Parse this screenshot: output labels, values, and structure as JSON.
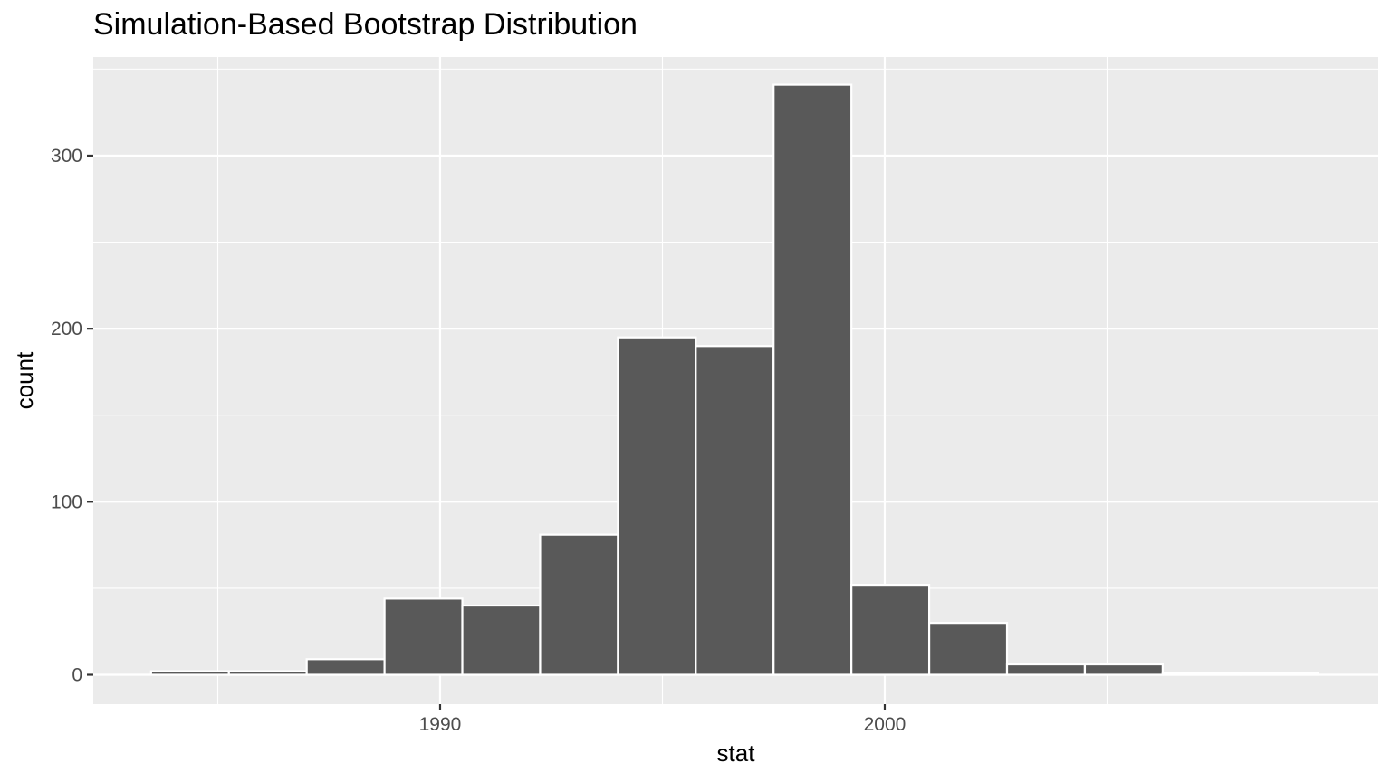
{
  "chart_data": {
    "type": "bar",
    "title": "Simulation-Based Bootstrap Distribution",
    "xlabel": "stat",
    "ylabel": "count",
    "x_ticks": [
      1990,
      2000
    ],
    "y_ticks": [
      0,
      100,
      200,
      300
    ],
    "xlim": [
      1982.2,
      2011.1
    ],
    "ylim": [
      -17,
      357
    ],
    "bin_width": 1.75,
    "bins": [
      {
        "start": 1983.5,
        "count": 2
      },
      {
        "start": 1985.25,
        "count": 2
      },
      {
        "start": 1987.0,
        "count": 9
      },
      {
        "start": 1988.75,
        "count": 44
      },
      {
        "start": 1990.5,
        "count": 40
      },
      {
        "start": 1992.25,
        "count": 81
      },
      {
        "start": 1994.0,
        "count": 195
      },
      {
        "start": 1995.75,
        "count": 190
      },
      {
        "start": 1997.5,
        "count": 341
      },
      {
        "start": 1999.25,
        "count": 52
      },
      {
        "start": 2001.0,
        "count": 30
      },
      {
        "start": 2002.75,
        "count": 6
      },
      {
        "start": 2004.5,
        "count": 6
      },
      {
        "start": 2006.25,
        "count": 1
      },
      {
        "start": 2008.0,
        "count": 1
      }
    ],
    "grid": true,
    "colors": {
      "panel": "#ebebeb",
      "grid": "#ffffff",
      "bar_fill": "#595959",
      "bar_stroke": "#ffffff"
    }
  }
}
